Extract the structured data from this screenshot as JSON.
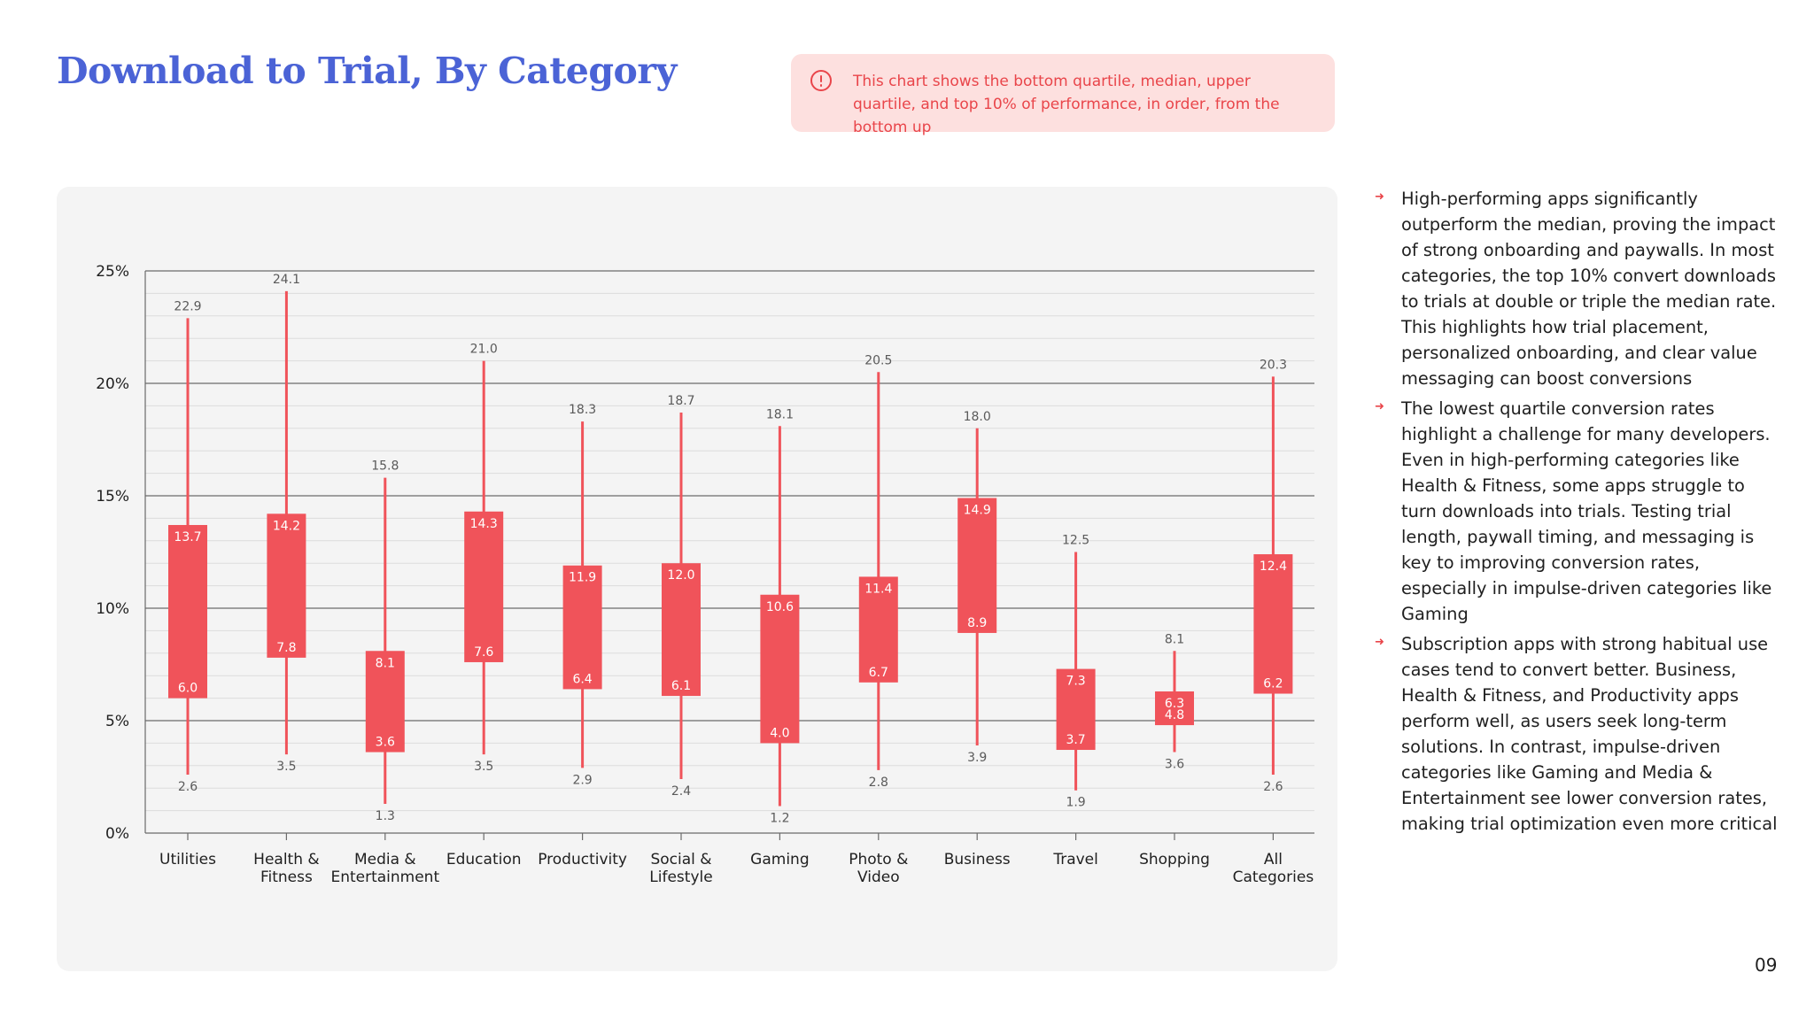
{
  "title": "Download to Trial, By Category",
  "notice": {
    "icon": "alert-circle-icon",
    "text": "This chart shows the bottom quartile, median, upper quartile, and top 10% of performance, in order, from the bottom up"
  },
  "insights": [
    "High-performing apps significantly outperform the median, proving the impact of strong onboarding and paywalls. In most categories, the top 10% convert downloads to trials at double or triple the median rate. This highlights how trial placement, personalized onboarding, and clear value messaging can boost conversions",
    "The lowest quartile conversion rates highlight a challenge for many developers. Even in high-performing categories like Health & Fitness, some apps struggle to turn downloads into trials. Testing trial length, paywall timing, and messaging is key to improving conversion rates, especially in impulse-driven categories like Gaming",
    "Subscription apps with strong habitual use cases tend to convert better. Business, Health & Fitness, and Productivity apps perform well, as users seek long-term solutions. In contrast, impulse-driven categories like Gaming and Media & Entertainment see lower conversion rates, making trial optimization even more critical"
  ],
  "bullet_icon": "arrow-right-icon",
  "page_number": "09",
  "colors": {
    "title": "#4b63d6",
    "accent": "#f0535a",
    "notice_bg": "#fde0df",
    "notice_text": "#e9454a",
    "panel_bg": "#f4f4f4"
  },
  "chart_data": {
    "type": "box",
    "title": "",
    "xlabel": "",
    "ylabel": "",
    "ylim": [
      0,
      25
    ],
    "yticks": [
      0,
      5,
      10,
      15,
      20,
      25
    ],
    "ytick_labels": [
      "0%",
      "5%",
      "10%",
      "15%",
      "20%",
      "25%"
    ],
    "grid": true,
    "categories": [
      [
        "Utilities"
      ],
      [
        "Health &",
        "Fitness"
      ],
      [
        "Media &",
        "Entertainment"
      ],
      [
        "Education"
      ],
      [
        "Productivity"
      ],
      [
        "Social &",
        "Lifestyle"
      ],
      [
        "Gaming"
      ],
      [
        "Photo &",
        "Video"
      ],
      [
        "Business"
      ],
      [
        "Travel"
      ],
      [
        "Shopping"
      ],
      [
        "All",
        "Categories"
      ]
    ],
    "series": [
      {
        "name": "bottom quartile",
        "values": [
          2.6,
          3.5,
          1.3,
          3.5,
          2.9,
          2.4,
          1.2,
          2.8,
          3.9,
          1.9,
          3.6,
          2.6
        ]
      },
      {
        "name": "median",
        "values": [
          6.0,
          7.8,
          3.6,
          7.6,
          6.4,
          6.1,
          4.0,
          6.7,
          8.9,
          3.7,
          4.8,
          6.2
        ]
      },
      {
        "name": "upper quartile",
        "values": [
          13.7,
          14.2,
          8.1,
          14.3,
          11.9,
          12.0,
          10.6,
          11.4,
          14.9,
          7.3,
          6.3,
          12.4
        ]
      },
      {
        "name": "top 10%",
        "values": [
          22.9,
          24.1,
          15.8,
          21.0,
          18.3,
          18.7,
          18.1,
          20.5,
          18.0,
          12.5,
          8.1,
          20.3
        ]
      }
    ]
  }
}
